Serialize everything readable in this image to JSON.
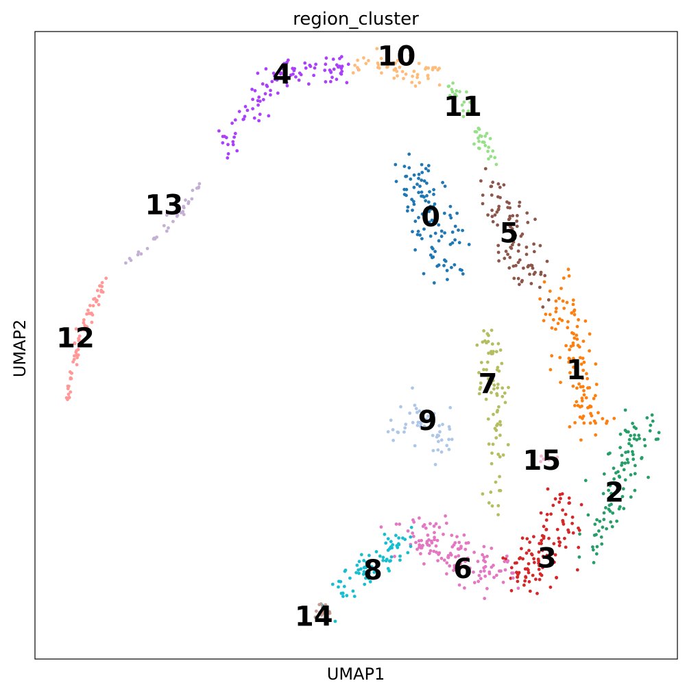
{
  "chart_data": {
    "type": "scatter",
    "title": "region_cluster",
    "xlabel": "UMAP1",
    "ylabel": "UMAP2",
    "xlim": [
      0,
      100
    ],
    "ylim": [
      0,
      100
    ],
    "grid": false,
    "legend": "on data",
    "clusters": [
      {
        "label": "0",
        "color": "#1f77b4",
        "n": 110,
        "curve": [
          [
            57.0,
            79.0
          ],
          [
            62.0,
            72.0
          ],
          [
            64.0,
            61.0
          ]
        ],
        "spread": 3.6
      },
      {
        "label": "1",
        "color": "#ff7f0e",
        "n": 110,
        "curve": [
          [
            81.5,
            59.0
          ],
          [
            84.5,
            48.0
          ],
          [
            87.0,
            37.0
          ]
        ],
        "spread": 3.0
      },
      {
        "label": "2",
        "color": "#279e68",
        "n": 100,
        "curve": [
          [
            94.5,
            38.5
          ],
          [
            91.5,
            30.0
          ],
          [
            87.0,
            17.5
          ]
        ],
        "spread": 2.5
      },
      {
        "label": "3",
        "color": "#d62728",
        "n": 110,
        "curve": [
          [
            83.0,
            25.0
          ],
          [
            79.5,
            16.5
          ],
          [
            75.0,
            13.0
          ]
        ],
        "spread": 3.4
      },
      {
        "label": "4",
        "color": "#aa40fc",
        "n": 100,
        "curve": [
          [
            29.5,
            80.5
          ],
          [
            33.0,
            88.0
          ],
          [
            39.5,
            94.5
          ],
          [
            48.5,
            94.0
          ]
        ],
        "spread": 2.2
      },
      {
        "label": "5",
        "color": "#8c564b",
        "n": 90,
        "curve": [
          [
            70.0,
            75.0
          ],
          [
            75.0,
            68.5
          ],
          [
            77.0,
            60.0
          ]
        ],
        "spread": 3.0
      },
      {
        "label": "6",
        "color": "#e377c2",
        "n": 130,
        "curve": [
          [
            57.5,
            20.5
          ],
          [
            65.0,
            17.0
          ],
          [
            72.0,
            13.5
          ]
        ],
        "spread": 3.6
      },
      {
        "label": "7",
        "color": "#b5bd61",
        "n": 80,
        "curve": [
          [
            70.5,
            52.5
          ],
          [
            71.5,
            40.0
          ],
          [
            72.0,
            24.0
          ]
        ],
        "spread": 2.0
      },
      {
        "label": "8",
        "color": "#17becf",
        "n": 75,
        "curve": [
          [
            47.5,
            10.0
          ],
          [
            52.0,
            15.0
          ],
          [
            58.0,
            20.0
          ]
        ],
        "spread": 2.0
      },
      {
        "label": "9",
        "color": "#aec7e8",
        "n": 55,
        "curve": [
          [
            56.5,
            36.5
          ],
          [
            60.5,
            38.5
          ],
          [
            64.0,
            34.0
          ]
        ],
        "spread": 2.6
      },
      {
        "label": "10",
        "color": "#ffbb78",
        "n": 50,
        "curve": [
          [
            50.0,
            95.5
          ],
          [
            56.0,
            94.0
          ],
          [
            62.0,
            93.5
          ]
        ],
        "spread": 1.8
      },
      {
        "label": "11",
        "color": "#98df8a",
        "n": 45,
        "curve": [
          [
            64.5,
            91.5
          ],
          [
            68.5,
            85.0
          ],
          [
            71.5,
            79.0
          ]
        ],
        "spread": 1.2
      },
      {
        "label": "12",
        "color": "#ff9896",
        "n": 65,
        "curve": [
          [
            11.0,
            60.5
          ],
          [
            6.5,
            50.0
          ],
          [
            5.0,
            41.0
          ]
        ],
        "spread": 0.6
      },
      {
        "label": "13",
        "color": "#c5b0d5",
        "n": 35,
        "curve": [
          [
            26.0,
            76.0
          ],
          [
            20.0,
            68.0
          ],
          [
            14.0,
            63.0
          ]
        ],
        "spread": 0.7
      },
      {
        "label": "14",
        "color": "#c49c94",
        "n": 22,
        "curve": [
          [
            43.5,
            7.0
          ],
          [
            45.0,
            7.5
          ],
          [
            45.5,
            8.0
          ]
        ],
        "spread": 1.1
      },
      {
        "label": "15",
        "color": "#f7b6d2",
        "n": 8,
        "curve": [
          [
            78.5,
            32.5
          ],
          [
            80.0,
            31.5
          ],
          [
            81.5,
            32.0
          ]
        ],
        "spread": 0.5
      }
    ],
    "annotations": [
      {
        "text": "0",
        "x": 61.6,
        "y": 70.4
      },
      {
        "text": "1",
        "x": 84.2,
        "y": 46.0
      },
      {
        "text": "2",
        "x": 90.2,
        "y": 26.5
      },
      {
        "text": "3",
        "x": 79.7,
        "y": 16.0
      },
      {
        "text": "4",
        "x": 38.5,
        "y": 93.1
      },
      {
        "text": "5",
        "x": 73.8,
        "y": 67.8
      },
      {
        "text": "6",
        "x": 66.6,
        "y": 14.3
      },
      {
        "text": "7",
        "x": 70.5,
        "y": 43.8
      },
      {
        "text": "8",
        "x": 52.6,
        "y": 14.1
      },
      {
        "text": "9",
        "x": 61.1,
        "y": 37.9
      },
      {
        "text": "10",
        "x": 56.3,
        "y": 96.0
      },
      {
        "text": "11",
        "x": 66.6,
        "y": 88.0
      },
      {
        "text": "12",
        "x": 6.3,
        "y": 51.1
      },
      {
        "text": "13",
        "x": 20.1,
        "y": 72.3
      },
      {
        "text": "14",
        "x": 43.4,
        "y": 6.7
      },
      {
        "text": "15",
        "x": 78.9,
        "y": 31.6
      }
    ]
  }
}
